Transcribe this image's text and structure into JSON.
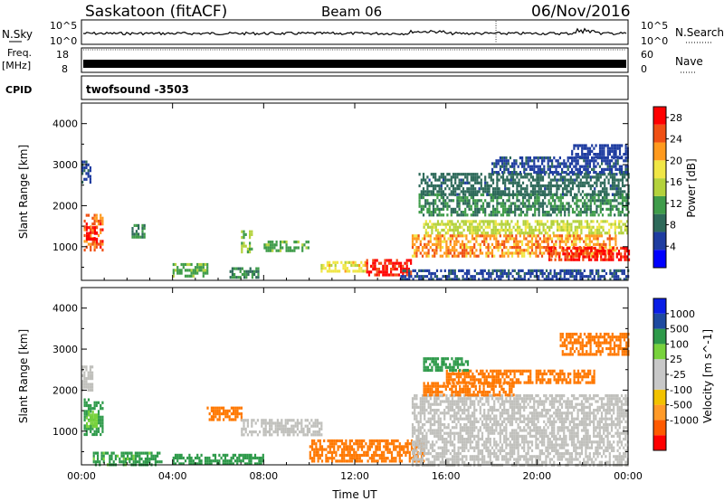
{
  "header": {
    "station": "Saskatoon (fitACF)",
    "beam": "Beam 06",
    "date": "06/Nov/2016"
  },
  "strips": {
    "nsky_label": "N.Sky",
    "nsky_left_ticks": [
      "10^5",
      "10^0"
    ],
    "nsearch_label": "N.Search",
    "nsearch_right_ticks": [
      "10^5",
      "10^0"
    ],
    "freq_label_line1": "Freq.",
    "freq_label_line2": "[MHz]",
    "freq_ticks": [
      "18",
      "8"
    ],
    "nave_label": "Nave",
    "nave_ticks": [
      "60",
      "0"
    ],
    "cpid_label": "CPID",
    "cpid_value": "twofsound -3503"
  },
  "colors": {
    "power_scale": [
      "#0000ff",
      "#1e3ca0",
      "#2e6a5a",
      "#3f9c4a",
      "#b4d23c",
      "#f0e646",
      "#ff9a1e",
      "#f05014",
      "#ff0000"
    ],
    "velocity_scale": [
      "#ff0000",
      "#ff5a00",
      "#ff9a28",
      "#f2c200",
      "#c8c8c8",
      "#c8c8c8",
      "#78d23c",
      "#2e9a4a",
      "#1e4aa0",
      "#0a1ee6"
    ],
    "ground_scatter": "#c0c0bc"
  },
  "chart_data": [
    {
      "type": "heatmap",
      "name": "power",
      "ylabel": "Slant Range [km]",
      "ylim": [
        180,
        4500
      ],
      "y_ticks": [
        1000,
        2000,
        3000,
        4000
      ],
      "x_ticks": [
        "00:00",
        "04:00",
        "08:00",
        "12:00",
        "16:00",
        "20:00",
        "00:00"
      ],
      "colorbar_label": "Power [dB]",
      "colorbar_ticks": [
        4,
        8,
        12,
        16,
        20,
        24,
        28
      ],
      "colorbar_range": [
        0,
        30
      ],
      "regions": [
        {
          "t": [
            0.1,
            0.9
          ],
          "r": [
            900,
            1800
          ],
          "value": 24
        },
        {
          "t": [
            0.2,
            0.7
          ],
          "r": [
            1100,
            1500
          ],
          "value": 30
        },
        {
          "t": [
            0.0,
            0.4
          ],
          "r": [
            2600,
            3100
          ],
          "value": 6
        },
        {
          "t": [
            2.2,
            2.8
          ],
          "r": [
            1250,
            1550
          ],
          "value": 10
        },
        {
          "t": [
            4.0,
            5.5
          ],
          "r": [
            250,
            600
          ],
          "value": 12
        },
        {
          "t": [
            6.5,
            7.8
          ],
          "r": [
            250,
            500
          ],
          "value": 10
        },
        {
          "t": [
            7.0,
            7.5
          ],
          "r": [
            850,
            1400
          ],
          "value": 14
        },
        {
          "t": [
            8.0,
            10.0
          ],
          "r": [
            900,
            1150
          ],
          "value": 12
        },
        {
          "t": [
            10.5,
            12.5
          ],
          "r": [
            400,
            650
          ],
          "value": 18
        },
        {
          "t": [
            12.5,
            14.5
          ],
          "r": [
            300,
            700
          ],
          "value": 28
        },
        {
          "t": [
            14.0,
            24.0
          ],
          "r": [
            200,
            450
          ],
          "value": 6
        },
        {
          "t": [
            14.5,
            23.5
          ],
          "r": [
            800,
            1300
          ],
          "value": 22
        },
        {
          "t": [
            20.5,
            24.0
          ],
          "r": [
            650,
            1000
          ],
          "value": 28
        },
        {
          "t": [
            15.0,
            24.0
          ],
          "r": [
            1300,
            1650
          ],
          "value": 16
        },
        {
          "t": [
            14.8,
            24.0
          ],
          "r": [
            1800,
            2300
          ],
          "value": 10
        },
        {
          "t": [
            14.8,
            24.0
          ],
          "r": [
            2300,
            2800
          ],
          "value": 8
        },
        {
          "t": [
            18.0,
            24.0
          ],
          "r": [
            2800,
            3200
          ],
          "value": 6
        },
        {
          "t": [
            21.5,
            24.0
          ],
          "r": [
            3200,
            3500
          ],
          "value": 5
        }
      ]
    },
    {
      "type": "heatmap",
      "name": "velocity",
      "ylabel": "Slant Range [km]",
      "ylim": [
        180,
        4500
      ],
      "y_ticks": [
        1000,
        2000,
        3000,
        4000
      ],
      "x_ticks": [
        "00:00",
        "04:00",
        "08:00",
        "12:00",
        "16:00",
        "20:00",
        "00:00"
      ],
      "xlabel": "Time UT",
      "colorbar_label": "Velocity [m s^-1]",
      "colorbar_ticks": [
        "1000",
        "500",
        "100",
        "25",
        "-25",
        "-100",
        "-500",
        "-1000"
      ],
      "regions": [
        {
          "t": [
            0.1,
            0.9
          ],
          "r": [
            900,
            1800
          ],
          "value": 120
        },
        {
          "t": [
            0.2,
            0.7
          ],
          "r": [
            1100,
            1500
          ],
          "value": 60
        },
        {
          "t": [
            0.0,
            0.5
          ],
          "r": [
            2000,
            2600
          ],
          "value": 0
        },
        {
          "t": [
            0.5,
            3.5
          ],
          "r": [
            200,
            500
          ],
          "value": 110
        },
        {
          "t": [
            4.0,
            8.0
          ],
          "r": [
            200,
            450
          ],
          "value": 130
        },
        {
          "t": [
            5.5,
            7.0
          ],
          "r": [
            1300,
            1600
          ],
          "value": -150
        },
        {
          "t": [
            7.0,
            10.5
          ],
          "r": [
            900,
            1300
          ],
          "value": 0
        },
        {
          "t": [
            10.0,
            15.0
          ],
          "r": [
            300,
            800
          ],
          "value": -140
        },
        {
          "t": [
            14.5,
            24.0
          ],
          "r": [
            200,
            1900
          ],
          "value": 0
        },
        {
          "t": [
            15.0,
            19.0
          ],
          "r": [
            1900,
            2200
          ],
          "value": -200
        },
        {
          "t": [
            16.0,
            22.5
          ],
          "r": [
            2200,
            2500
          ],
          "value": -400
        },
        {
          "t": [
            21.0,
            24.0
          ],
          "r": [
            2900,
            3400
          ],
          "value": -200
        },
        {
          "t": [
            15.0,
            17.0
          ],
          "r": [
            2500,
            2800
          ],
          "value": 150
        }
      ]
    }
  ]
}
